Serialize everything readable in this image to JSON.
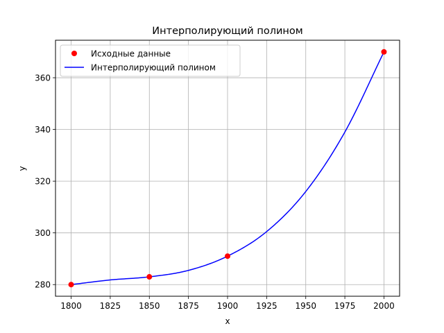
{
  "chart_data": {
    "type": "line",
    "title": "Интерполирующий полином",
    "xlabel": "x",
    "ylabel": "y",
    "xlim": [
      1790,
      2010
    ],
    "ylim": [
      275.5,
      374.5
    ],
    "xticks": [
      1800,
      1825,
      1850,
      1875,
      1900,
      1925,
      1950,
      1975,
      2000
    ],
    "yticks": [
      280,
      300,
      320,
      340,
      360
    ],
    "grid": true,
    "legend_position": "top-left",
    "series": [
      {
        "name": "Исходные данные",
        "kind": "scatter",
        "color": "#ff0000",
        "x": [
          1800,
          1850,
          1900,
          2000
        ],
        "y": [
          280,
          283,
          291,
          370
        ]
      },
      {
        "name": "Интерполирующий полином",
        "kind": "line",
        "color": "#0000ff",
        "x": [
          1800,
          1825,
          1850,
          1875,
          1900,
          1925,
          1950,
          1975,
          2000
        ],
        "y": [
          280,
          281.8,
          283,
          285.5,
          291,
          300.5,
          316,
          339,
          370
        ]
      }
    ]
  }
}
